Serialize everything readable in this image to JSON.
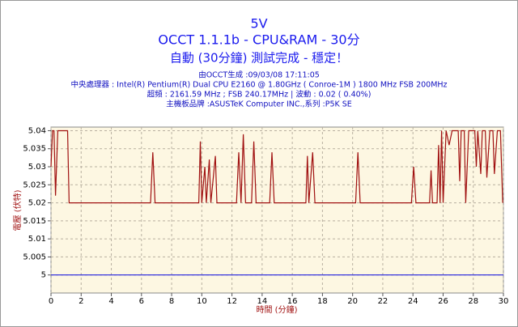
{
  "chart_data": {
    "type": "line",
    "title": "5V",
    "subtitle": "OCCT 1.1.1b - CPU&RAM - 30分",
    "status": "自動 (30分鐘) 測試完成 - 穩定！",
    "info": [
      "由OCCT生成 :09/03/08 17:11:05",
      "中央處理器 : Intel(R) Pentium(R) Dual CPU E2160 @ 1.80GHz ( Conroe-1M ) 1800 MHz FSB 200MHz",
      "超頻 : 2161.59 MHz ; FSB 240.17MHz | 波動 : 0.02 ( 0.40%)",
      "主機板品牌 :ASUSTeK Computer INC.,系列 :P5K SE"
    ],
    "xlabel": "時間 (分鐘)",
    "ylabel": "電壓 (伏特)",
    "xlim": [
      0,
      30
    ],
    "xticks": [
      0,
      2,
      4,
      6,
      8,
      10,
      12,
      14,
      16,
      18,
      20,
      22,
      24,
      26,
      28,
      30
    ],
    "ylim": [
      4.995,
      5.041
    ],
    "yticks": [
      5,
      5.005,
      5.01,
      5.015,
      5.02,
      5.025,
      5.03,
      5.035,
      5.04
    ],
    "grid": true,
    "series": [
      {
        "color": "#a01010",
        "x": [
          0,
          0.1,
          0.2,
          0.3,
          0.45,
          1.1,
          1.2,
          6.6,
          6.75,
          6.9,
          9.8,
          9.9,
          10.0,
          10.2,
          10.3,
          10.5,
          10.6,
          10.9,
          11.0,
          12.3,
          12.45,
          12.6,
          12.75,
          12.9,
          13.3,
          13.45,
          13.6,
          14.5,
          14.65,
          14.8,
          16.9,
          17.0,
          17.1,
          17.35,
          17.5,
          20.2,
          20.35,
          20.5,
          23.9,
          24.05,
          24.2,
          25.1,
          25.2,
          25.3,
          25.6,
          25.7,
          25.8,
          25.9,
          26.0,
          26.2,
          26.4,
          26.6,
          27.0,
          27.1,
          27.2,
          27.4,
          27.5,
          27.7,
          28.1,
          28.2,
          28.3,
          28.5,
          28.6,
          28.8,
          28.9,
          29.1,
          29.3,
          29.4,
          29.6,
          29.8,
          29.95
        ],
        "values": [
          5.03,
          5.04,
          5.04,
          5.022,
          5.04,
          5.04,
          5.02,
          5.02,
          5.034,
          5.02,
          5.02,
          5.037,
          5.02,
          5.03,
          5.02,
          5.032,
          5.02,
          5.033,
          5.02,
          5.02,
          5.034,
          5.02,
          5.039,
          5.02,
          5.02,
          5.037,
          5.02,
          5.02,
          5.034,
          5.02,
          5.02,
          5.033,
          5.02,
          5.034,
          5.02,
          5.02,
          5.034,
          5.02,
          5.02,
          5.03,
          5.02,
          5.02,
          5.029,
          5.02,
          5.02,
          5.036,
          5.02,
          5.04,
          5.02,
          5.04,
          5.036,
          5.04,
          5.04,
          5.026,
          5.04,
          5.04,
          5.02,
          5.04,
          5.04,
          5.03,
          5.04,
          5.028,
          5.04,
          5.04,
          5.027,
          5.04,
          5.04,
          5.028,
          5.04,
          5.04,
          5.02
        ]
      },
      {
        "color": "#2020e0",
        "x": [
          0,
          30
        ],
        "values": [
          5,
          5
        ]
      }
    ]
  }
}
